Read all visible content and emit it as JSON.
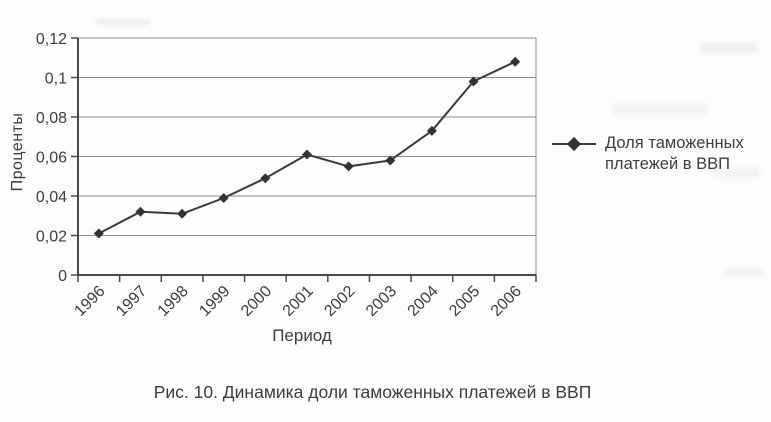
{
  "figure": {
    "caption": "Рис. 10. Динамика доли таможенных платежей в ВВП"
  },
  "legend": {
    "lines": [
      "Доля таможенных",
      "платежей в ВВП"
    ]
  },
  "chart_data": {
    "type": "line",
    "title": "",
    "xlabel": "Период",
    "ylabel": "Проценты",
    "categories": [
      "1996",
      "1997",
      "1998",
      "1999",
      "2000",
      "2001",
      "2002",
      "2003",
      "2004",
      "2005",
      "2006"
    ],
    "series": [
      {
        "name": "Доля таможенных платежей в ВВП",
        "values": [
          0.021,
          0.032,
          0.031,
          0.039,
          0.049,
          0.061,
          0.055,
          0.058,
          0.073,
          0.098,
          0.108
        ]
      }
    ],
    "ylim": [
      0,
      0.12
    ],
    "yticks": [
      0,
      0.02,
      0.04,
      0.06,
      0.08,
      0.1,
      0.12
    ],
    "ytick_labels": [
      "0",
      "0,02",
      "0,04",
      "0,06",
      "0,08",
      "0,1",
      "0,12"
    ],
    "grid": "horizontal",
    "legend_position": "right",
    "marker": "diamond",
    "colors": {
      "line": "#3a3a3a",
      "marker": "#333333",
      "grid": "#8c8c8c",
      "axis": "#4a4a4a",
      "text": "#3d3d3d"
    }
  }
}
